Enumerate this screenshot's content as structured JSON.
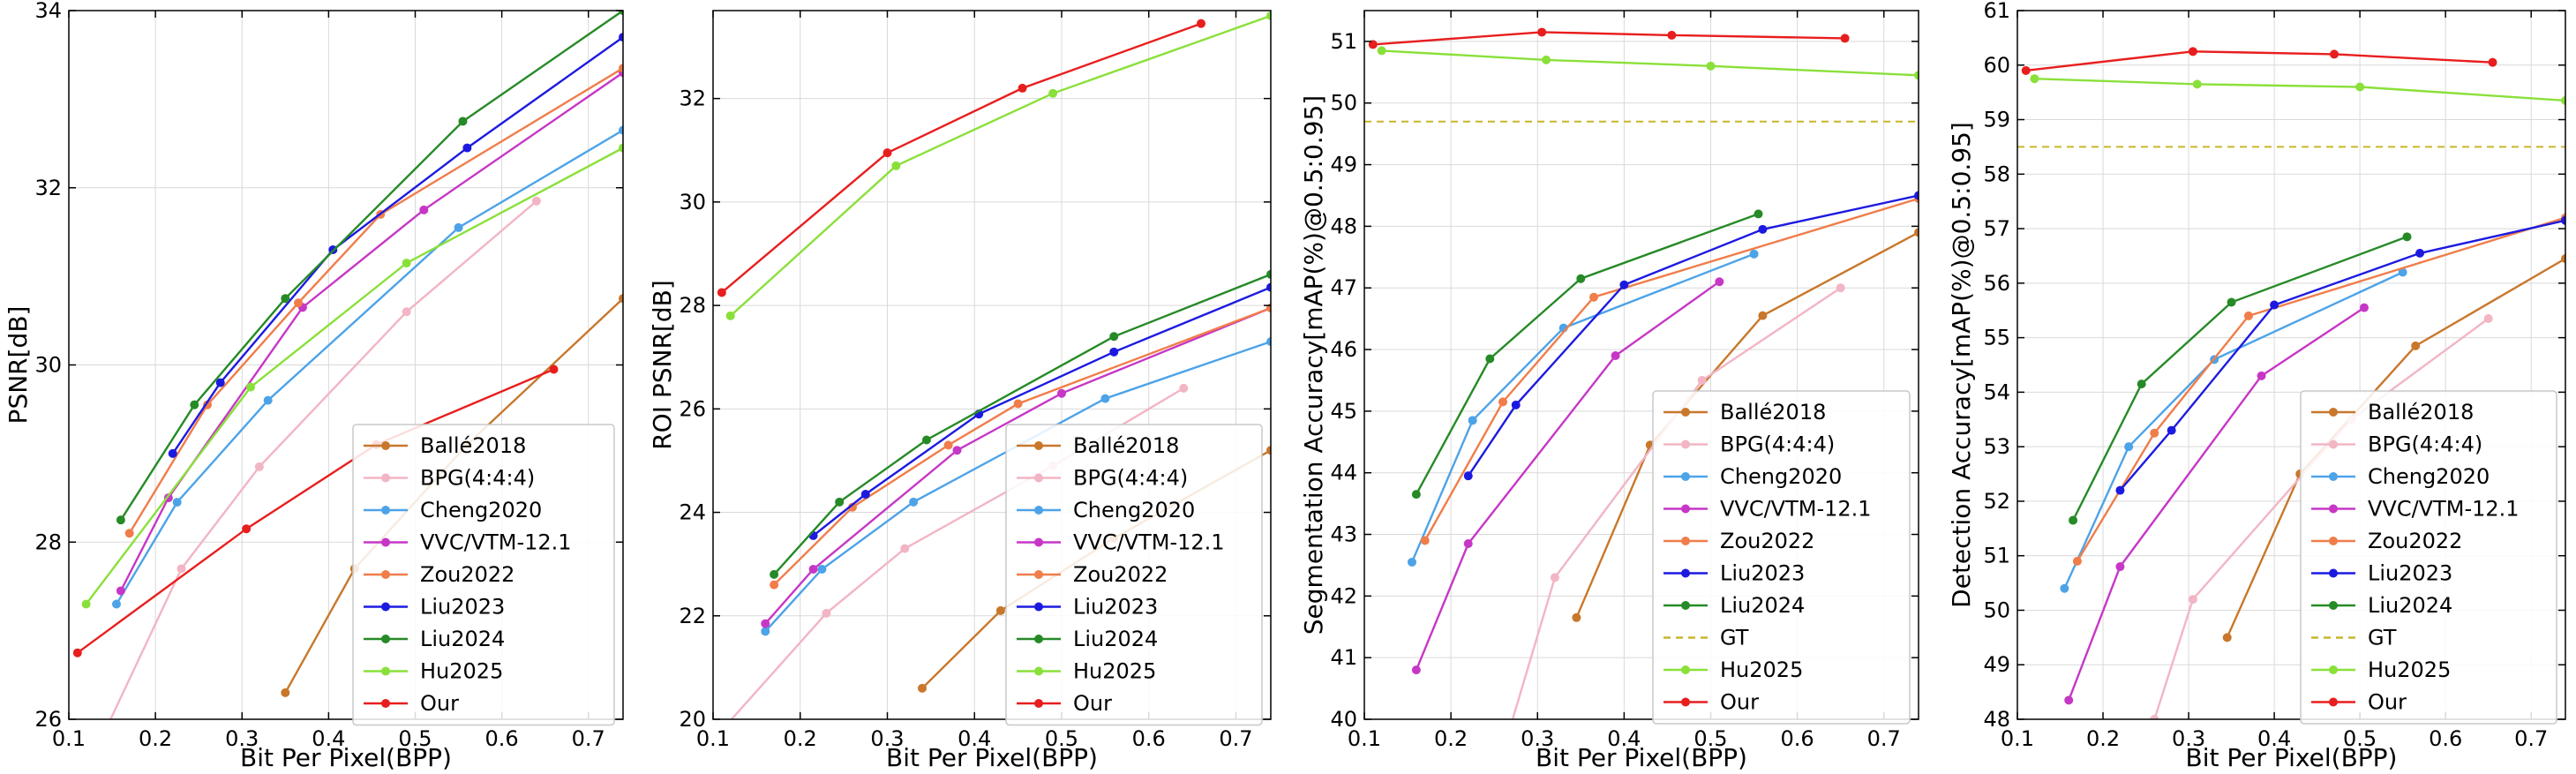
{
  "series_styles": [
    {
      "name": "Ballé2018",
      "color": "#c8772b"
    },
    {
      "name": "BPG(4:4:4)",
      "color": "#f2b5c4"
    },
    {
      "name": "Cheng2020",
      "color": "#4da3e8"
    },
    {
      "name": "VVC/VTM-12.1",
      "color": "#c637c6"
    },
    {
      "name": "Zou2022",
      "color": "#f07d4a"
    },
    {
      "name": "Liu2023",
      "color": "#1d1ae0"
    },
    {
      "name": "Liu2024",
      "color": "#268a26"
    },
    {
      "name": "GT",
      "color": "#c8b62a"
    },
    {
      "name": "Hu2025",
      "color": "#8ae03a"
    },
    {
      "name": "Our",
      "color": "#e81e1e"
    }
  ],
  "chart_data": [
    {
      "type": "line",
      "xlabel": "Bit Per Pixel(BPP)",
      "ylabel": "PSNR[dB]",
      "xlim": [
        0.1,
        0.74
      ],
      "ylim": [
        26,
        34
      ],
      "xticks": [
        0.1,
        0.2,
        0.3,
        0.4,
        0.5,
        0.6,
        0.7
      ],
      "yticks": [
        26,
        28,
        30,
        32,
        34
      ],
      "grid": true,
      "legend_position": "bottom-right",
      "series": [
        {
          "name": "Ballé2018",
          "x": [
            0.35,
            0.43,
            0.56,
            0.74
          ],
          "y": [
            26.3,
            27.7,
            29.1,
            30.75
          ]
        },
        {
          "name": "BPG(4:4:4)",
          "x": [
            0.1,
            0.23,
            0.32,
            0.49,
            0.64
          ],
          "y": [
            25.0,
            27.7,
            28.85,
            30.6,
            31.85
          ]
        },
        {
          "name": "Cheng2020",
          "x": [
            0.155,
            0.225,
            0.33,
            0.55,
            0.74
          ],
          "y": [
            27.3,
            28.45,
            29.6,
            31.55,
            32.65
          ]
        },
        {
          "name": "VVC/VTM-12.1",
          "x": [
            0.16,
            0.215,
            0.37,
            0.51,
            0.74
          ],
          "y": [
            27.45,
            28.5,
            30.65,
            31.75,
            33.3
          ]
        },
        {
          "name": "Zou2022",
          "x": [
            0.17,
            0.26,
            0.365,
            0.46,
            0.74
          ],
          "y": [
            28.1,
            29.55,
            30.7,
            31.7,
            33.35
          ]
        },
        {
          "name": "Liu2023",
          "x": [
            0.22,
            0.275,
            0.405,
            0.56,
            0.74
          ],
          "y": [
            29.0,
            29.8,
            31.3,
            32.45,
            33.7
          ]
        },
        {
          "name": "Liu2024",
          "x": [
            0.16,
            0.245,
            0.35,
            0.555,
            0.74
          ],
          "y": [
            28.25,
            29.55,
            30.75,
            32.75,
            34.0
          ]
        },
        {
          "name": "Hu2025",
          "x": [
            0.12,
            0.31,
            0.49,
            0.74
          ],
          "y": [
            27.3,
            29.75,
            31.15,
            32.45
          ]
        },
        {
          "name": "Our",
          "x": [
            0.11,
            0.305,
            0.455,
            0.66
          ],
          "y": [
            26.75,
            28.15,
            29.1,
            29.95
          ]
        }
      ]
    },
    {
      "type": "line",
      "xlabel": "Bit Per Pixel(BPP)",
      "ylabel": "ROI PSNR[dB]",
      "xlim": [
        0.1,
        0.74
      ],
      "ylim": [
        20,
        33.7
      ],
      "xticks": [
        0.1,
        0.2,
        0.3,
        0.4,
        0.5,
        0.6,
        0.7
      ],
      "yticks": [
        20,
        22,
        24,
        26,
        28,
        30,
        32
      ],
      "grid": true,
      "legend_position": "bottom-right",
      "series": [
        {
          "name": "Ballé2018",
          "x": [
            0.34,
            0.43,
            0.56,
            0.74
          ],
          "y": [
            20.6,
            22.1,
            23.5,
            25.2
          ]
        },
        {
          "name": "BPG(4:4:4)",
          "x": [
            0.1,
            0.23,
            0.32,
            0.49,
            0.64
          ],
          "y": [
            19.6,
            22.05,
            23.3,
            24.9,
            26.4
          ]
        },
        {
          "name": "Cheng2020",
          "x": [
            0.16,
            0.225,
            0.33,
            0.55,
            0.74
          ],
          "y": [
            21.7,
            22.9,
            24.2,
            26.2,
            27.3
          ]
        },
        {
          "name": "VVC/VTM-12.1",
          "x": [
            0.16,
            0.215,
            0.38,
            0.5,
            0.74
          ],
          "y": [
            21.85,
            22.9,
            25.2,
            26.3,
            27.95
          ]
        },
        {
          "name": "Zou2022",
          "x": [
            0.17,
            0.26,
            0.37,
            0.45,
            0.74
          ],
          "y": [
            22.6,
            24.1,
            25.3,
            26.1,
            27.95
          ]
        },
        {
          "name": "Liu2023",
          "x": [
            0.215,
            0.275,
            0.405,
            0.56,
            0.74
          ],
          "y": [
            23.55,
            24.35,
            25.9,
            27.1,
            28.35
          ]
        },
        {
          "name": "Liu2024",
          "x": [
            0.17,
            0.245,
            0.345,
            0.56,
            0.74
          ],
          "y": [
            22.8,
            24.2,
            25.4,
            27.4,
            28.6
          ]
        },
        {
          "name": "Hu2025",
          "x": [
            0.12,
            0.31,
            0.49,
            0.74
          ],
          "y": [
            27.8,
            30.7,
            32.1,
            33.6
          ]
        },
        {
          "name": "Our",
          "x": [
            0.11,
            0.3,
            0.455,
            0.66
          ],
          "y": [
            28.25,
            30.95,
            32.2,
            33.45
          ]
        }
      ]
    },
    {
      "type": "line",
      "xlabel": "Bit Per Pixel(BPP)",
      "ylabel": "Segmentation Accuracy[mAP(%)@0.5:0.95]",
      "xlim": [
        0.1,
        0.74
      ],
      "ylim": [
        40,
        51.5
      ],
      "xticks": [
        0.1,
        0.2,
        0.3,
        0.4,
        0.5,
        0.6,
        0.7
      ],
      "yticks": [
        40,
        41,
        42,
        43,
        44,
        45,
        46,
        47,
        48,
        49,
        50,
        51
      ],
      "grid": true,
      "legend_position": "bottom-right",
      "series": [
        {
          "name": "Ballé2018",
          "x": [
            0.345,
            0.43,
            0.56,
            0.74
          ],
          "y": [
            41.65,
            44.45,
            46.55,
            47.9
          ]
        },
        {
          "name": "BPG(4:4:4)",
          "x": [
            0.25,
            0.32,
            0.49,
            0.65
          ],
          "y": [
            39.0,
            42.3,
            45.5,
            47.0
          ]
        },
        {
          "name": "Cheng2020",
          "x": [
            0.155,
            0.225,
            0.33,
            0.55
          ],
          "y": [
            42.55,
            44.85,
            46.35,
            47.55
          ]
        },
        {
          "name": "VVC/VTM-12.1",
          "x": [
            0.16,
            0.22,
            0.39,
            0.51
          ],
          "y": [
            40.8,
            42.85,
            45.9,
            47.1
          ]
        },
        {
          "name": "Zou2022",
          "x": [
            0.17,
            0.26,
            0.365,
            0.74
          ],
          "y": [
            42.9,
            45.15,
            46.85,
            48.45
          ]
        },
        {
          "name": "Liu2023",
          "x": [
            0.22,
            0.275,
            0.4,
            0.56,
            0.74
          ],
          "y": [
            43.95,
            45.1,
            47.05,
            47.95,
            48.5
          ]
        },
        {
          "name": "Liu2024",
          "x": [
            0.16,
            0.245,
            0.35,
            0.555
          ],
          "y": [
            43.65,
            45.85,
            47.15,
            48.2
          ]
        },
        {
          "name": "GT",
          "x": [
            0.1,
            0.74
          ],
          "y": [
            49.7,
            49.7
          ]
        },
        {
          "name": "Hu2025",
          "x": [
            0.12,
            0.31,
            0.5,
            0.74
          ],
          "y": [
            50.85,
            50.7,
            50.6,
            50.45
          ]
        },
        {
          "name": "Our",
          "x": [
            0.11,
            0.305,
            0.455,
            0.655
          ],
          "y": [
            50.95,
            51.15,
            51.1,
            51.05
          ]
        }
      ]
    },
    {
      "type": "line",
      "xlabel": "Bit Per Pixel(BPP)",
      "ylabel": "Detection Accuracy[mAP(%)@0.5:0.95]",
      "xlim": [
        0.1,
        0.74
      ],
      "ylim": [
        48,
        61
      ],
      "xticks": [
        0.1,
        0.2,
        0.3,
        0.4,
        0.5,
        0.6,
        0.7
      ],
      "yticks": [
        48,
        49,
        50,
        51,
        52,
        53,
        54,
        55,
        56,
        57,
        58,
        59,
        60,
        61
      ],
      "grid": true,
      "legend_position": "bottom-right",
      "series": [
        {
          "name": "Ballé2018",
          "x": [
            0.345,
            0.43,
            0.565,
            0.74
          ],
          "y": [
            49.5,
            52.5,
            54.85,
            56.45
          ]
        },
        {
          "name": "BPG(4:4:4)",
          "x": [
            0.26,
            0.305,
            0.49,
            0.65
          ],
          "y": [
            48.0,
            50.2,
            53.5,
            55.35
          ]
        },
        {
          "name": "Cheng2020",
          "x": [
            0.155,
            0.23,
            0.33,
            0.55
          ],
          "y": [
            50.4,
            53.0,
            54.6,
            56.2
          ]
        },
        {
          "name": "VVC/VTM-12.1",
          "x": [
            0.16,
            0.22,
            0.385,
            0.505
          ],
          "y": [
            48.35,
            50.8,
            54.3,
            55.55
          ]
        },
        {
          "name": "Zou2022",
          "x": [
            0.17,
            0.26,
            0.37,
            0.74
          ],
          "y": [
            50.9,
            53.25,
            55.4,
            57.2
          ]
        },
        {
          "name": "Liu2023",
          "x": [
            0.22,
            0.28,
            0.4,
            0.57,
            0.74
          ],
          "y": [
            52.2,
            53.3,
            55.6,
            56.55,
            57.15
          ]
        },
        {
          "name": "Liu2024",
          "x": [
            0.165,
            0.245,
            0.35,
            0.555
          ],
          "y": [
            51.65,
            54.15,
            55.65,
            56.85
          ]
        },
        {
          "name": "GT",
          "x": [
            0.1,
            0.74
          ],
          "y": [
            58.5,
            58.5
          ]
        },
        {
          "name": "Hu2025",
          "x": [
            0.12,
            0.31,
            0.5,
            0.74
          ],
          "y": [
            59.75,
            59.65,
            59.6,
            59.35
          ]
        },
        {
          "name": "Our",
          "x": [
            0.11,
            0.305,
            0.47,
            0.655
          ],
          "y": [
            59.9,
            60.25,
            60.2,
            60.05
          ]
        }
      ]
    }
  ]
}
